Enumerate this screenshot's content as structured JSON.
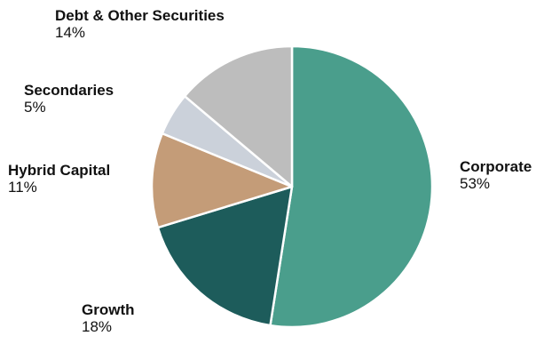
{
  "chart_data": {
    "type": "pie",
    "slices": [
      {
        "name": "Corporate",
        "value": 53,
        "label": "53%",
        "color": "#4a9e8c"
      },
      {
        "name": "Growth",
        "value": 18,
        "label": "18%",
        "color": "#1d5c5b"
      },
      {
        "name": "Hybrid Capital",
        "value": 11,
        "label": "11%",
        "color": "#c49c78"
      },
      {
        "name": "Secondaries",
        "value": 5,
        "label": "5%",
        "color": "#cbd1da"
      },
      {
        "name": "Debt & Other Securities",
        "value": 14,
        "label": "14%",
        "color": "#bdbdbd"
      }
    ],
    "start": "12 o'clock",
    "direction": "clockwise"
  }
}
